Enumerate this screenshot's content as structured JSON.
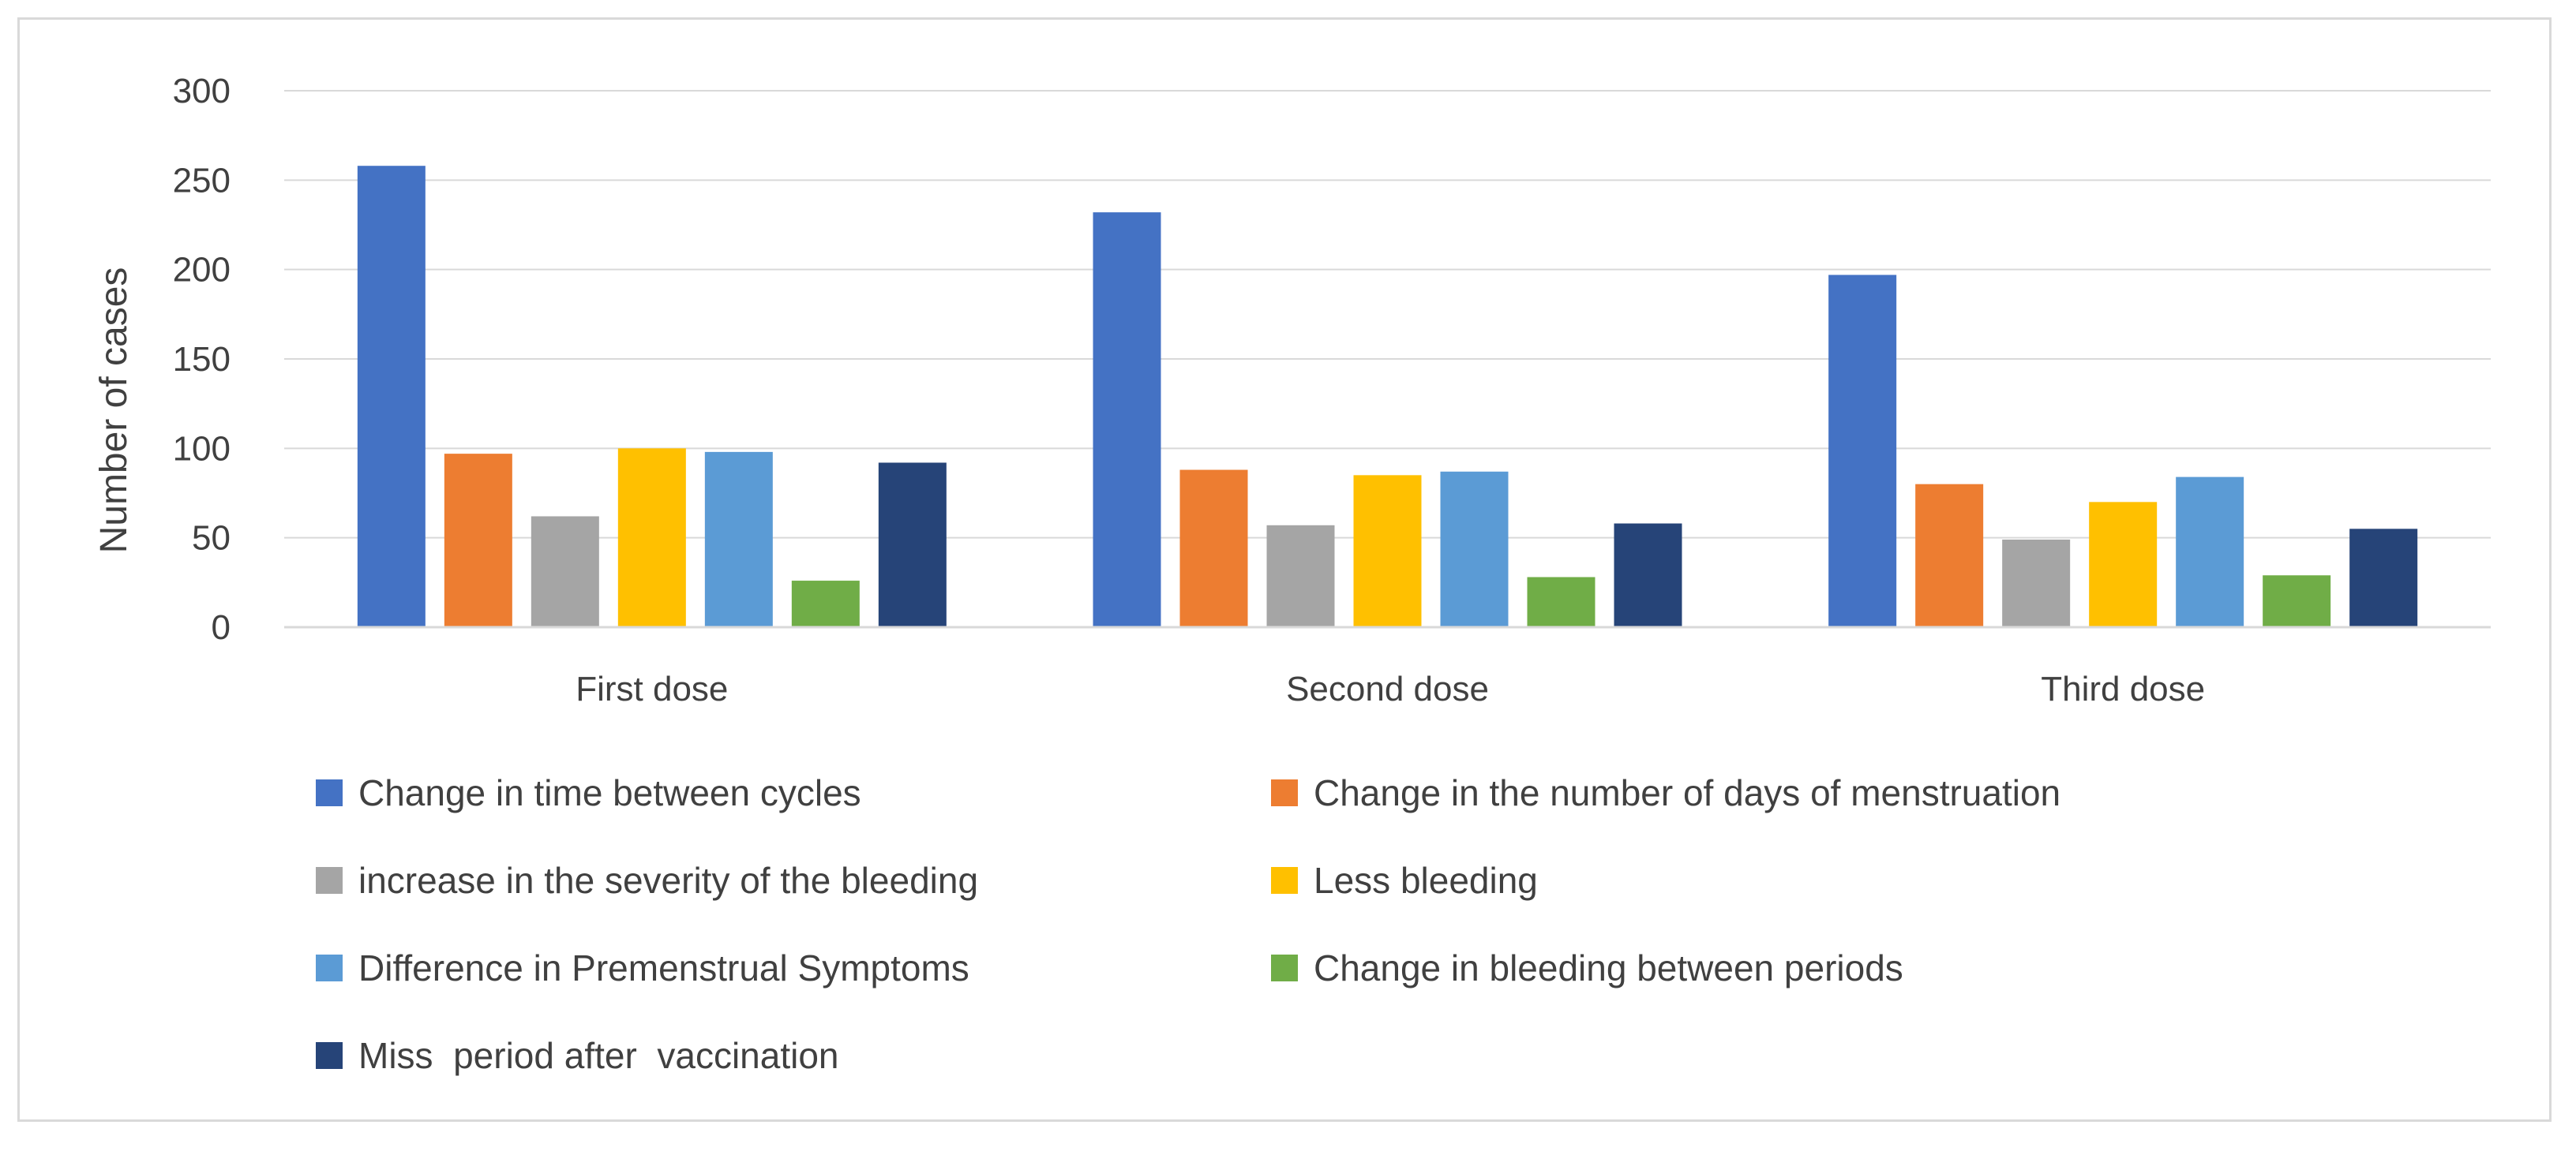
{
  "chart_data": {
    "type": "bar",
    "title": "",
    "xlabel": "",
    "ylabel": "Number of cases",
    "ylim": [
      0,
      300
    ],
    "yticks": [
      0,
      50,
      100,
      150,
      200,
      250,
      300
    ],
    "ytick_labels": [
      "0",
      "50",
      "100",
      "150",
      "200",
      "250",
      "300"
    ],
    "grid": true,
    "legend_position": "bottom",
    "categories": [
      "First dose",
      "Second dose",
      "Third dose"
    ],
    "series": [
      {
        "name": "Change in time between cycles",
        "color": "#4472c4",
        "values": [
          258,
          232,
          197
        ]
      },
      {
        "name": "Change in the number of days of menstruation",
        "color": "#ed7d31",
        "values": [
          97,
          88,
          80
        ]
      },
      {
        "name": "increase in the severity of the bleeding",
        "color": "#a5a5a5",
        "values": [
          62,
          57,
          49
        ]
      },
      {
        "name": "Less bleeding",
        "color": "#ffc000",
        "values": [
          100,
          85,
          70
        ]
      },
      {
        "name": "Difference in Premenstrual Symptoms",
        "color": "#5b9bd5",
        "values": [
          98,
          87,
          84
        ]
      },
      {
        "name": "Change in bleeding between periods",
        "color": "#70ad47",
        "values": [
          26,
          28,
          29
        ]
      },
      {
        "name": "Miss  period after  vaccination",
        "color": "#264478",
        "values": [
          92,
          58,
          55
        ]
      }
    ]
  }
}
